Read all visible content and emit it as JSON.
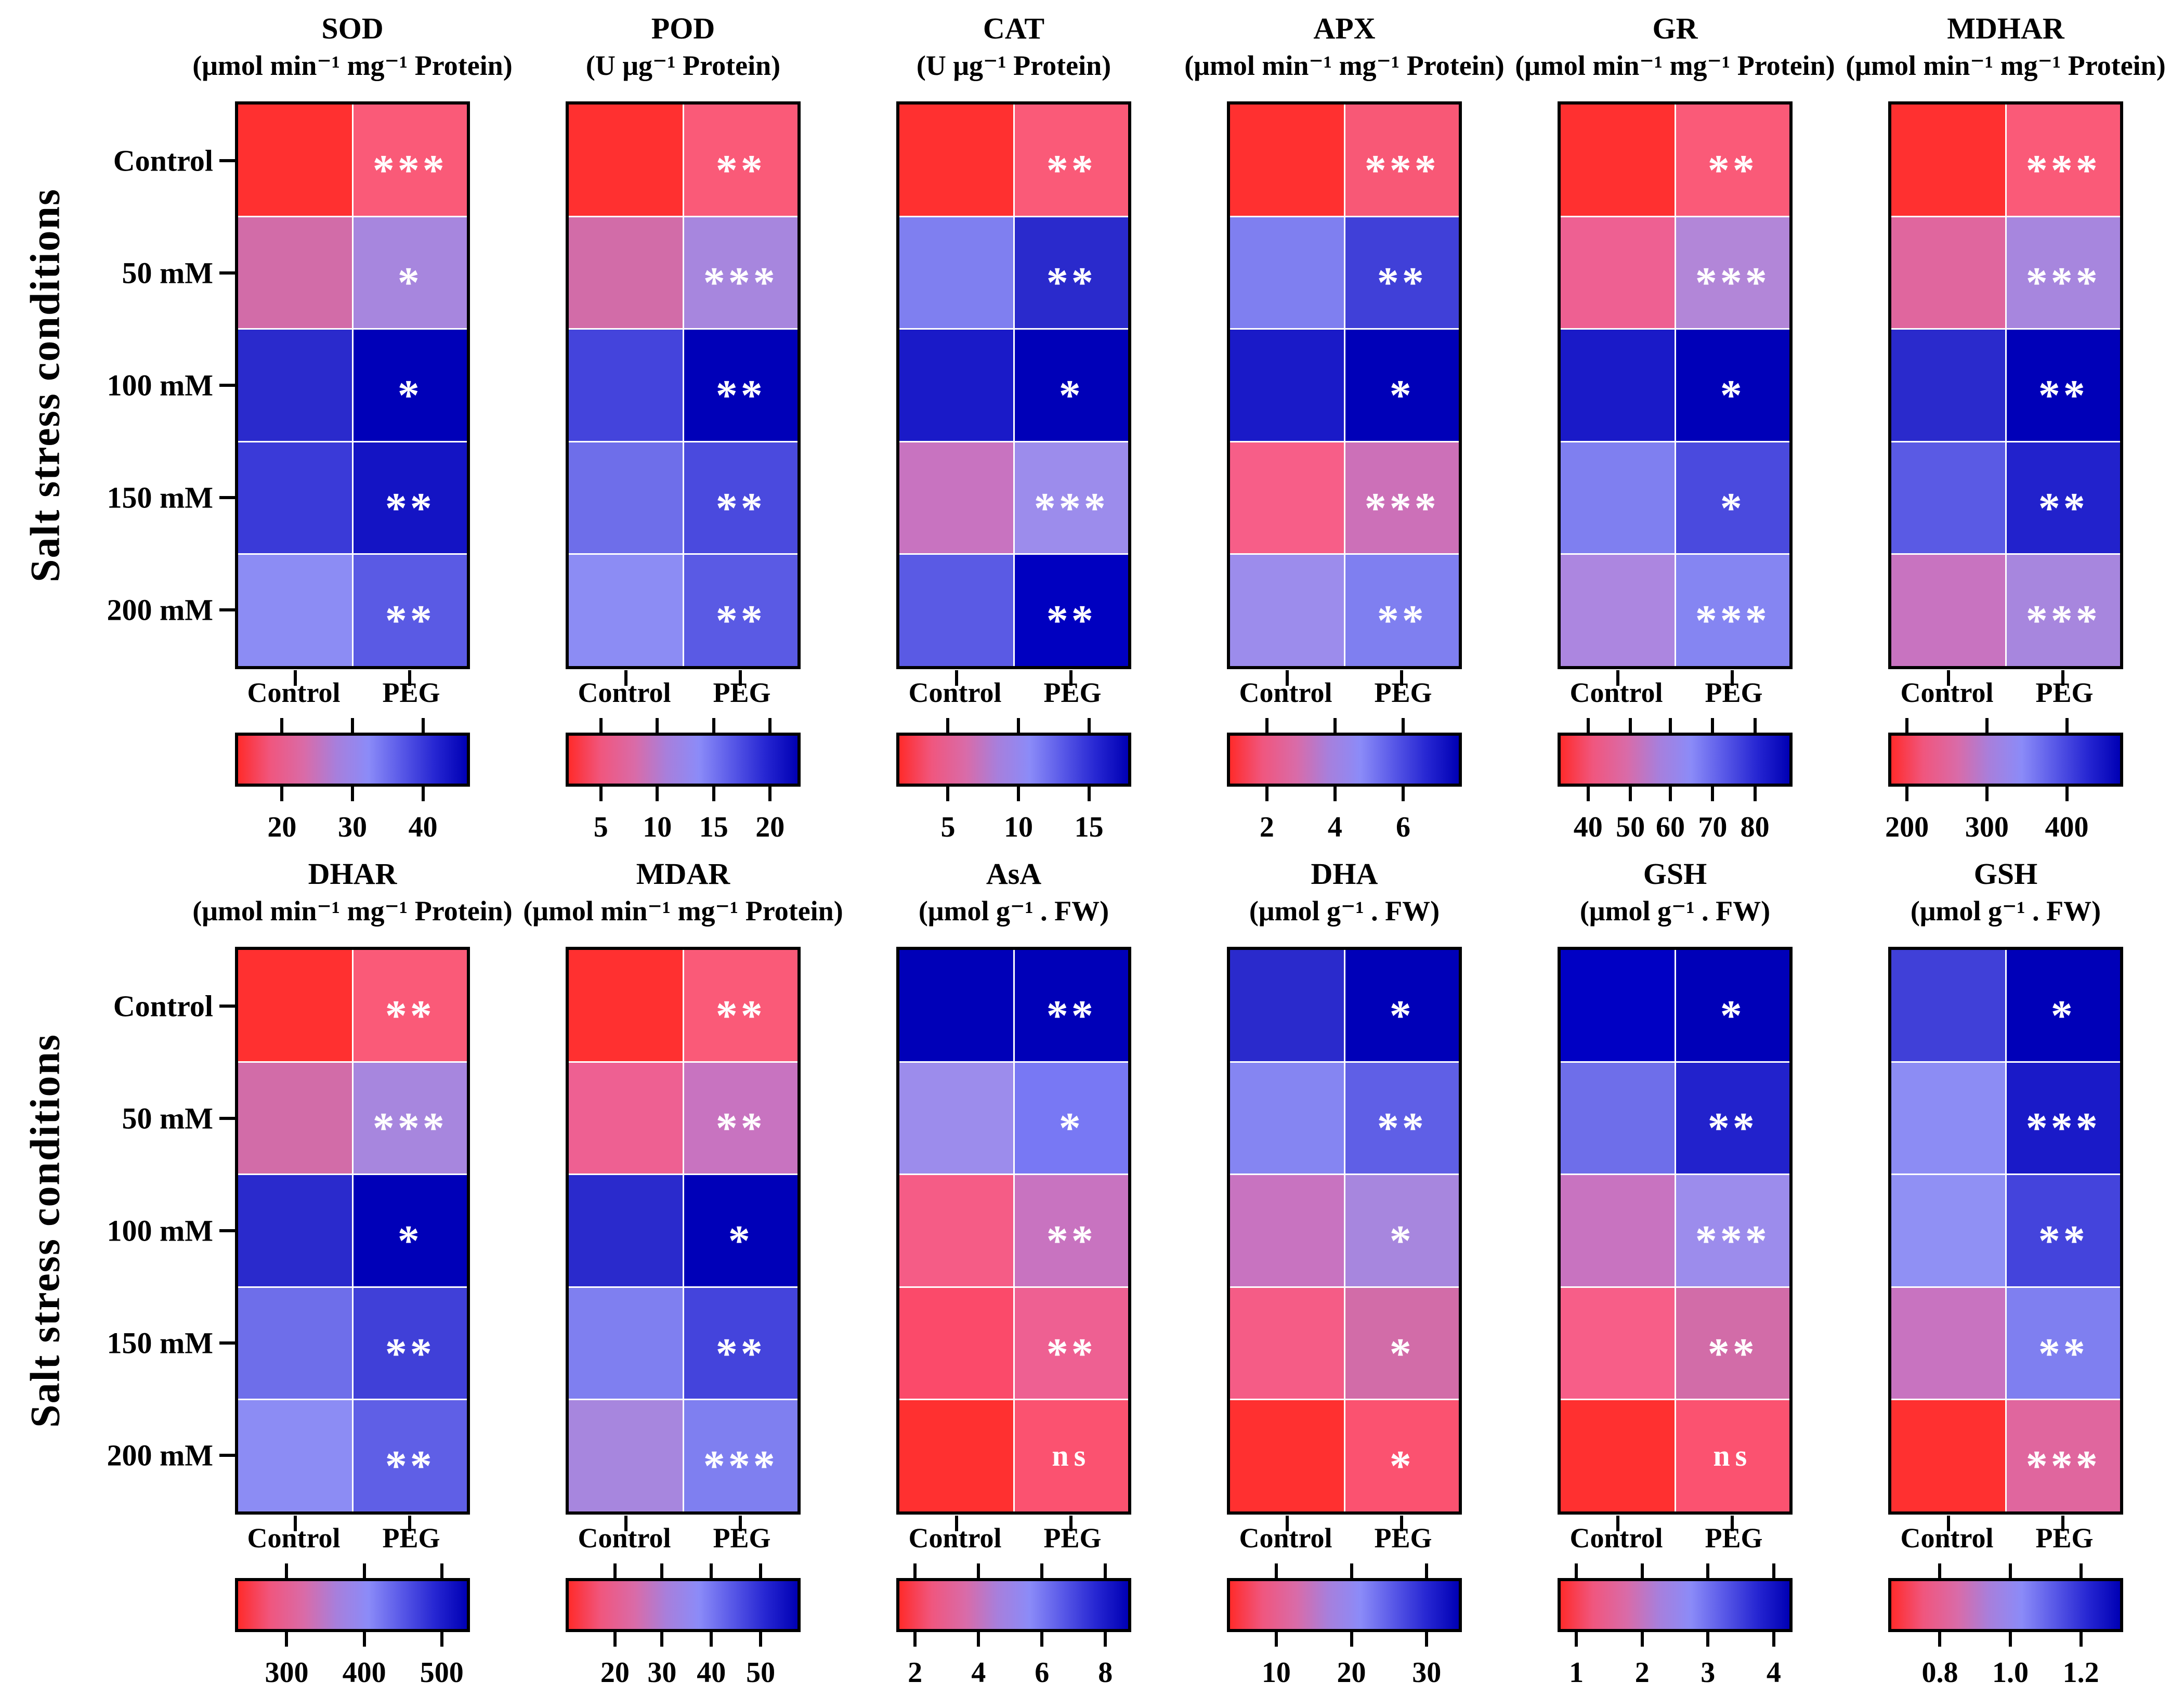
{
  "figure": {
    "y_axis_label": "Salt stress conditions",
    "row_labels": [
      "Control",
      "50 mM",
      "100 mM",
      "150 mM",
      "200 mM"
    ],
    "x_tick_labels": [
      "Control",
      "PEG"
    ],
    "colorbar_gradient": [
      "#FF2B2B",
      "#F0567E",
      "#D96BA8",
      "#A77FDC",
      "#8B8BF8",
      "#5A5AE8",
      "#2626D2",
      "#0000B4"
    ],
    "significance_text_color": "#FFFFFF"
  },
  "chart_data": {
    "type": "heatmap",
    "columns": [
      "Control",
      "PEG"
    ],
    "rows": [
      "Control",
      "50 mM",
      "100 mM",
      "150 mM",
      "200 mM"
    ],
    "ylabel": "Salt stress conditions",
    "legend_note": "each panel: 5x2 heatmap, red=low to blue=high, significance marks in PEG column",
    "panels": [
      {
        "title": "SOD",
        "unit": "(μmol min⁻¹ mg⁻¹ Protein)",
        "annotations": [
          "***",
          "*",
          "*",
          "**",
          "**"
        ],
        "cell_colors": [
          [
            "#FF3030",
            "#FA5A78"
          ],
          [
            "#D26CA8",
            "#A786DE"
          ],
          [
            "#2A2ACC",
            "#0000B8"
          ],
          [
            "#3A3AD8",
            "#1414C4"
          ],
          [
            "#8C8CF4",
            "#5A5AE4"
          ]
        ],
        "colorbar_ticks": [
          "20",
          "30",
          "40"
        ],
        "colorbar_tick_positions": [
          20,
          50,
          80
        ]
      },
      {
        "title": "POD",
        "unit": "(U μg⁻¹ Protein)",
        "annotations": [
          "**",
          "***",
          "**",
          "**",
          "**"
        ],
        "cell_colors": [
          [
            "#FF3030",
            "#FA5A78"
          ],
          [
            "#D26CA8",
            "#A786DE"
          ],
          [
            "#4444DC",
            "#0000B8"
          ],
          [
            "#6E6EEA",
            "#4A4ADE"
          ],
          [
            "#8C8CF4",
            "#5A5AE4"
          ]
        ],
        "colorbar_ticks": [
          "5",
          "10",
          "15",
          "20"
        ],
        "colorbar_tick_positions": [
          15,
          39,
          63,
          87
        ]
      },
      {
        "title": "CAT",
        "unit": "(U μg⁻¹ Protein)",
        "annotations": [
          "**",
          "**",
          "*",
          "***",
          "**"
        ],
        "cell_colors": [
          [
            "#FF3030",
            "#FA5A78"
          ],
          [
            "#7F7FF0",
            "#2A2ACC"
          ],
          [
            "#1A1AC8",
            "#0000B8"
          ],
          [
            "#C873C0",
            "#9C8CEC"
          ],
          [
            "#5A5AE4",
            "#0000C0"
          ]
        ],
        "colorbar_ticks": [
          "5",
          "10",
          "15"
        ],
        "colorbar_tick_positions": [
          22,
          52,
          82
        ]
      },
      {
        "title": "APX",
        "unit": "(μmol min⁻¹ mg⁻¹ Protein)",
        "annotations": [
          "***",
          "**",
          "*",
          "***",
          "**"
        ],
        "cell_colors": [
          [
            "#FF3030",
            "#F85876"
          ],
          [
            "#7F7FF0",
            "#4040D8"
          ],
          [
            "#1A1AC8",
            "#0000B8"
          ],
          [
            "#F75E88",
            "#CC70B8"
          ],
          [
            "#9C8CEC",
            "#7F7FF0"
          ]
        ],
        "colorbar_ticks": [
          "2",
          "4",
          "6"
        ],
        "colorbar_tick_positions": [
          17,
          46,
          75
        ]
      },
      {
        "title": "GR",
        "unit": "(μmol min⁻¹ mg⁻¹ Protein)",
        "annotations": [
          "**",
          "***",
          "*",
          "*",
          "***"
        ],
        "cell_colors": [
          [
            "#FF3030",
            "#FA5A78"
          ],
          [
            "#EE6092",
            "#B286D8"
          ],
          [
            "#1A1AC8",
            "#0000B8"
          ],
          [
            "#7F7FF0",
            "#4A4ADE"
          ],
          [
            "#AC86E0",
            "#8585F2"
          ]
        ],
        "colorbar_ticks": [
          "40",
          "50",
          "60",
          "70",
          "80"
        ],
        "colorbar_tick_positions": [
          13,
          31,
          48,
          66,
          84
        ]
      },
      {
        "title": "MDHAR",
        "unit": "(μmol min⁻¹ mg⁻¹ Protein)",
        "annotations": [
          "***",
          "***",
          "**",
          "**",
          "***"
        ],
        "cell_colors": [
          [
            "#FF3030",
            "#FA5A78"
          ],
          [
            "#E0669E",
            "#A786DE"
          ],
          [
            "#2A2ACC",
            "#0000B8"
          ],
          [
            "#5A5AE4",
            "#2222CC"
          ],
          [
            "#C873C0",
            "#A786DE"
          ]
        ],
        "colorbar_ticks": [
          "200",
          "300",
          "400"
        ],
        "colorbar_tick_positions": [
          8,
          42,
          76
        ]
      },
      {
        "title": "DHAR",
        "unit": "(μmol min⁻¹ mg⁻¹ Protein)",
        "annotations": [
          "**",
          "***",
          "*",
          "**",
          "**"
        ],
        "cell_colors": [
          [
            "#FF3030",
            "#FA5A78"
          ],
          [
            "#D26CA8",
            "#A786DE"
          ],
          [
            "#2A2ACC",
            "#0000B8"
          ],
          [
            "#6E6EEA",
            "#4040D8"
          ],
          [
            "#8C8CF4",
            "#5F5FE6"
          ]
        ],
        "colorbar_ticks": [
          "300",
          "400",
          "500"
        ],
        "colorbar_tick_positions": [
          22,
          55,
          88
        ]
      },
      {
        "title": "MDAR",
        "unit": "(μmol min⁻¹ mg⁻¹ Protein)",
        "annotations": [
          "**",
          "**",
          "*",
          "**",
          "***"
        ],
        "cell_colors": [
          [
            "#FF3030",
            "#FA5A78"
          ],
          [
            "#EE6092",
            "#C873C0"
          ],
          [
            "#2A2ACC",
            "#0000B8"
          ],
          [
            "#7F7FF0",
            "#4444DC"
          ],
          [
            "#A786DE",
            "#7F7FF0"
          ]
        ],
        "colorbar_ticks": [
          "20",
          "30",
          "40",
          "50"
        ],
        "colorbar_tick_positions": [
          21,
          41,
          62,
          83
        ]
      },
      {
        "title": "AsA",
        "unit": "(μmol g⁻¹ . FW)",
        "annotations": [
          "**",
          "*",
          "**",
          "**",
          "ns"
        ],
        "cell_colors": [
          [
            "#0000B8",
            "#0000B8"
          ],
          [
            "#9C8CEC",
            "#7878F4"
          ],
          [
            "#F55C86",
            "#C873C0"
          ],
          [
            "#FB4A6A",
            "#EE6092"
          ],
          [
            "#FF3030",
            "#FB5270"
          ]
        ],
        "colorbar_ticks": [
          "2",
          "4",
          "6",
          "8"
        ],
        "colorbar_tick_positions": [
          8,
          35,
          62,
          89
        ]
      },
      {
        "title": "DHA",
        "unit": "(μmol g⁻¹ . FW)",
        "annotations": [
          "*",
          "**",
          "*",
          "*",
          "*"
        ],
        "cell_colors": [
          [
            "#2A2ACC",
            "#0000B8"
          ],
          [
            "#8585F2",
            "#5F5FE6"
          ],
          [
            "#C873C0",
            "#A786DE"
          ],
          [
            "#F55C86",
            "#D26CA8"
          ],
          [
            "#FF3030",
            "#FB5270"
          ]
        ],
        "colorbar_ticks": [
          "10",
          "20",
          "30"
        ],
        "colorbar_tick_positions": [
          21,
          53,
          85
        ]
      },
      {
        "title": "GSH",
        "unit": "(μmol g⁻¹ . FW)",
        "annotations": [
          "*",
          "**",
          "***",
          "**",
          "ns"
        ],
        "cell_colors": [
          [
            "#0000C4",
            "#0000B8"
          ],
          [
            "#6E6EEA",
            "#2222CC"
          ],
          [
            "#C873C0",
            "#9C8CEC"
          ],
          [
            "#F75E88",
            "#D26CA8"
          ],
          [
            "#FF3030",
            "#FB5270"
          ]
        ],
        "colorbar_ticks": [
          "1",
          "2",
          "3",
          "4"
        ],
        "colorbar_tick_positions": [
          8,
          36,
          64,
          92
        ]
      },
      {
        "title": "GSH",
        "unit": "(μmol g⁻¹ . FW)",
        "annotations": [
          "*",
          "***",
          "**",
          "**",
          "***"
        ],
        "cell_colors": [
          [
            "#4040D8",
            "#0000B8"
          ],
          [
            "#8C8CF4",
            "#1A1AC8"
          ],
          [
            "#9090F4",
            "#4444DC"
          ],
          [
            "#C873C0",
            "#7F7FF0"
          ],
          [
            "#FF3030",
            "#E0669E"
          ]
        ],
        "colorbar_ticks": [
          "0.8",
          "1.0",
          "1.2"
        ],
        "colorbar_tick_positions": [
          22,
          52,
          82
        ]
      }
    ]
  }
}
